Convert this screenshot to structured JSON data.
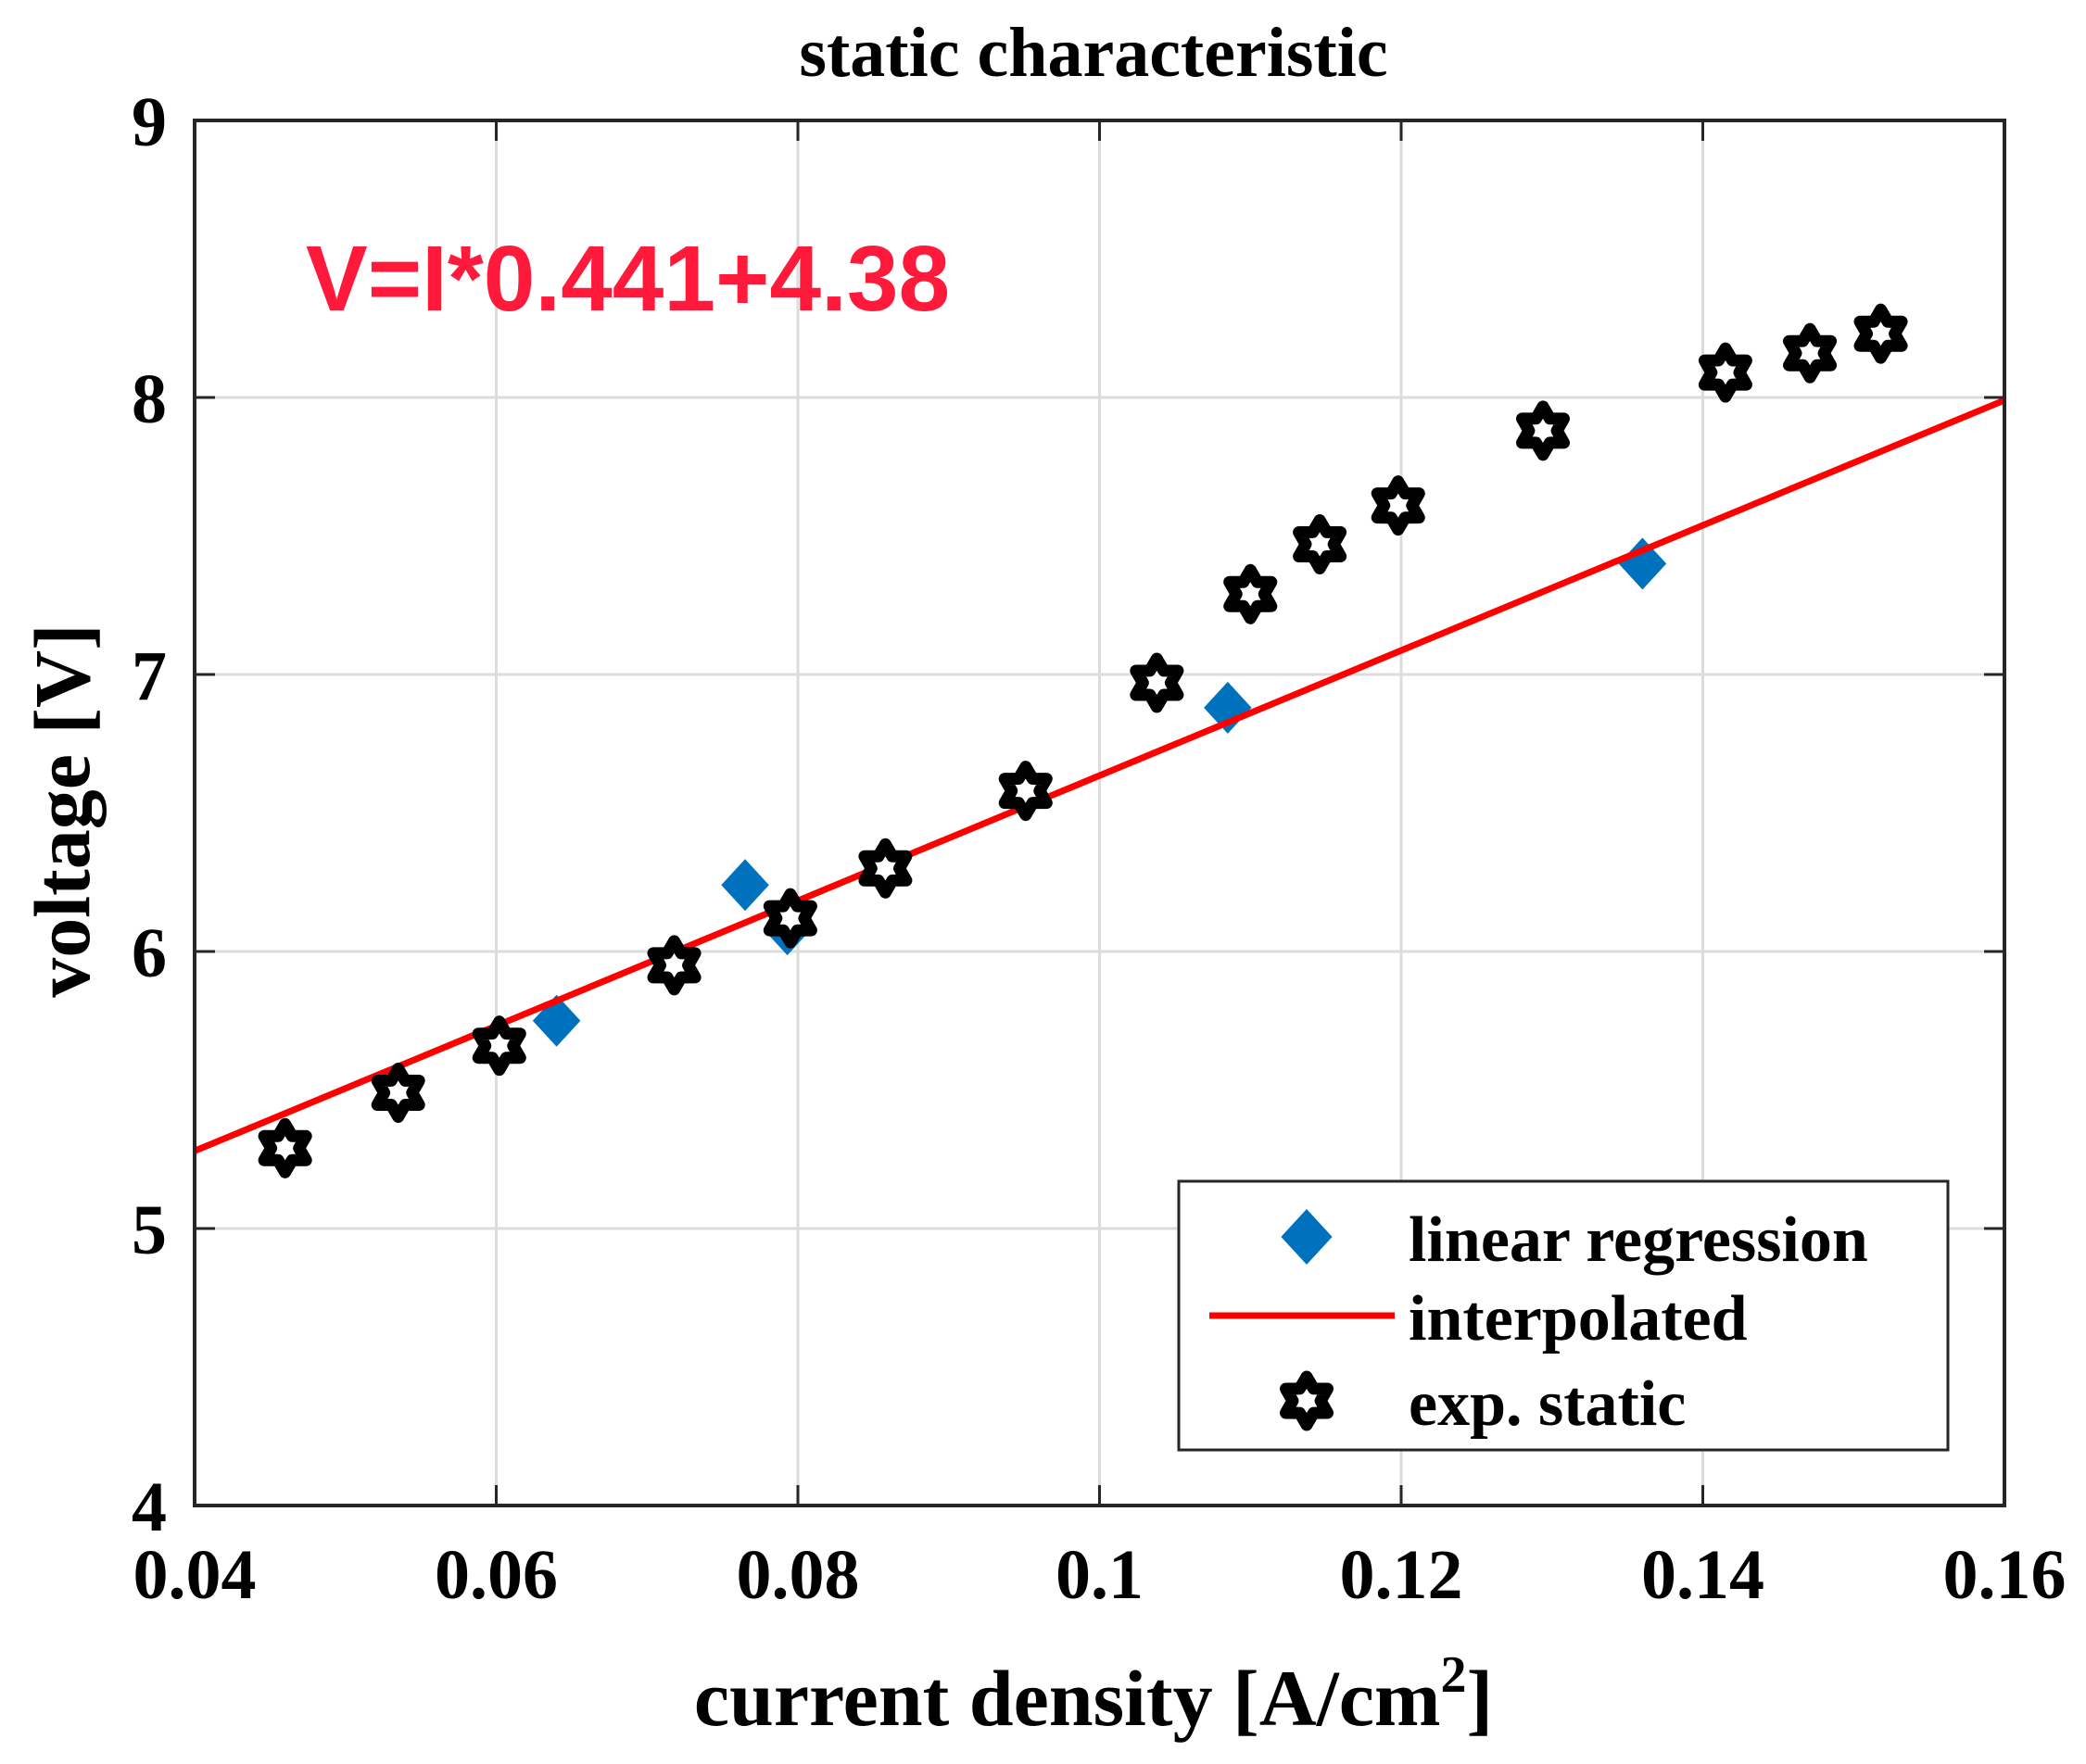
{
  "chart_data": {
    "type": "scatter",
    "title": "static characteristic",
    "xlabel": "current density [A/cm",
    "xlabel_sup": "2",
    "xlabel_suffix": "]",
    "ylabel": "voltage [V]",
    "xlim": [
      0.04,
      0.16
    ],
    "ylim": [
      4,
      9
    ],
    "xticks": [
      0.04,
      0.06,
      0.08,
      0.1,
      0.12,
      0.14,
      0.16
    ],
    "xtick_labels": [
      "0.04",
      "0.06",
      "0.08",
      "0.1",
      "0.12",
      "0.14",
      "0.16"
    ],
    "yticks": [
      4,
      5,
      6,
      7,
      8,
      9
    ],
    "ytick_labels": [
      "4",
      "5",
      "6",
      "7",
      "8",
      "9"
    ],
    "grid": true,
    "legend_position": "bottom-right",
    "annotation": {
      "text": "V=I*0.441+4.38",
      "color": "#ff1a3c"
    },
    "series": [
      {
        "name": "linear regression",
        "kind": "marker",
        "marker": "diamond",
        "color": "#0072bd",
        "x": [
          0.064,
          0.0765,
          0.0793,
          0.1085,
          0.136
        ],
        "y": [
          5.75,
          6.24,
          6.08,
          6.88,
          7.4
        ]
      },
      {
        "name": "interpolated",
        "kind": "line",
        "color": "#ff0000",
        "x": [
          0.04,
          0.16
        ],
        "y": [
          5.28,
          7.99
        ]
      },
      {
        "name": "exp. static",
        "kind": "marker",
        "marker": "hexagram",
        "color": "#000000",
        "x": [
          0.046,
          0.0535,
          0.0602,
          0.0718,
          0.0795,
          0.0858,
          0.0951,
          0.1038,
          0.11,
          0.1146,
          0.1198,
          0.1294,
          0.1415,
          0.1471,
          0.1518
        ],
        "y": [
          5.29,
          5.49,
          5.66,
          5.95,
          6.12,
          6.3,
          6.58,
          6.97,
          7.29,
          7.47,
          7.61,
          7.88,
          8.09,
          8.16,
          8.23
        ]
      }
    ]
  }
}
